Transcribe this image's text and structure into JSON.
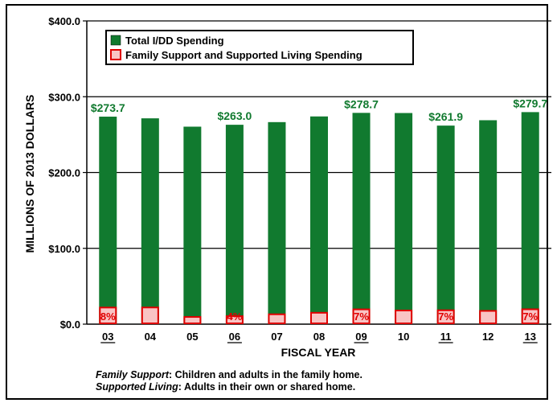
{
  "chart_data": {
    "type": "bar",
    "stacked": true,
    "categories": [
      "03",
      "04",
      "05",
      "06",
      "07",
      "08",
      "09",
      "10",
      "11",
      "12",
      "13"
    ],
    "underlined_categories": [
      "03",
      "06",
      "09",
      "11",
      "13"
    ],
    "series": [
      {
        "name": "Total I/DD Spending",
        "color": "#117a2f",
        "values": [
          273.7,
          271.5,
          260.5,
          263.0,
          266.5,
          274.0,
          278.7,
          278.5,
          261.9,
          269.0,
          279.7
        ]
      },
      {
        "name": "Family Support and Supported Living Spending",
        "color": "#f9c4c4",
        "edge_color": "#e00000",
        "values": [
          21.9,
          22.0,
          9.5,
          10.5,
          13.0,
          15.0,
          19.5,
          18.0,
          18.3,
          17.5,
          19.6
        ]
      }
    ],
    "value_labels": [
      {
        "index": 0,
        "text": "$273.7"
      },
      {
        "index": 3,
        "text": "$263.0"
      },
      {
        "index": 6,
        "text": "$278.7"
      },
      {
        "index": 8,
        "text": "$261.9"
      },
      {
        "index": 10,
        "text": "$279.7"
      }
    ],
    "pct_labels": [
      {
        "index": 0,
        "text": "8%"
      },
      {
        "index": 3,
        "text": "4%"
      },
      {
        "index": 6,
        "text": "7%"
      },
      {
        "index": 8,
        "text": "7%"
      },
      {
        "index": 10,
        "text": "7%"
      }
    ],
    "yticks": [
      0,
      100,
      200,
      300,
      400
    ],
    "ytick_labels": [
      "$0.0",
      "$100.0",
      "$200.0",
      "$300.0",
      "$400.0"
    ],
    "ylim": [
      0,
      400
    ],
    "xlabel": "FISCAL YEAR",
    "ylabel": "MILLIONS OF 2013 DOLLARS",
    "grid": "horizontal",
    "legend_position": "top-left"
  },
  "footnote": {
    "line1_term": "Family Support",
    "line1_text": ": Children and adults in the family home.",
    "line2_term": "Supported Living",
    "line2_text": ": Adults in their own or shared home."
  }
}
